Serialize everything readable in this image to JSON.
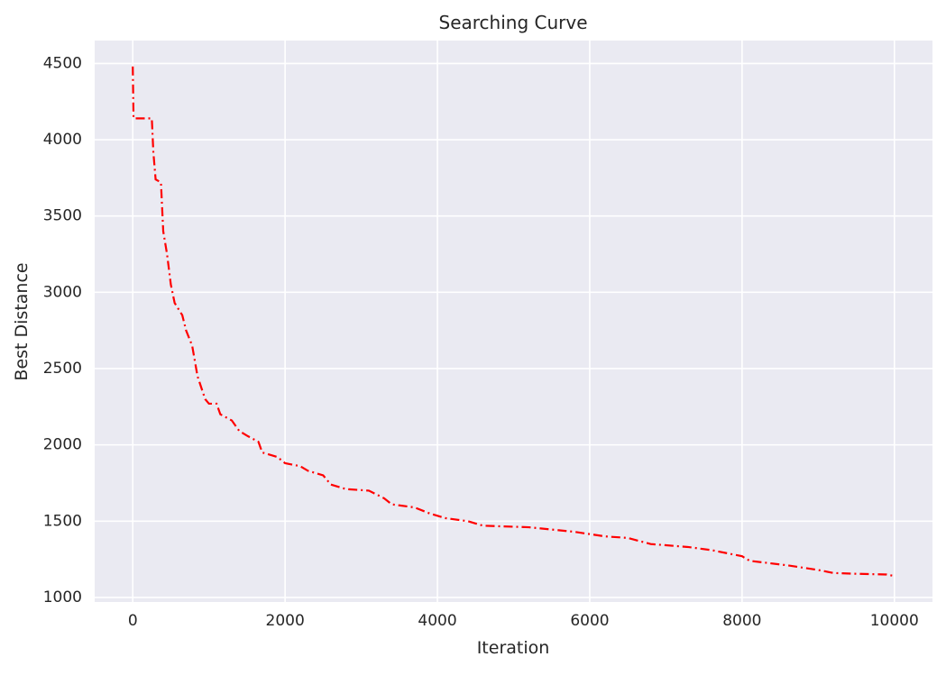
{
  "chart_data": {
    "type": "line",
    "title": "Searching Curve",
    "xlabel": "Iteration",
    "ylabel": "Best Distance",
    "x": [
      0,
      10,
      250,
      270,
      300,
      370,
      400,
      450,
      500,
      550,
      650,
      700,
      780,
      850,
      950,
      1000,
      1100,
      1150,
      1300,
      1400,
      1500,
      1650,
      1700,
      1900,
      2000,
      2200,
      2300,
      2500,
      2600,
      2800,
      3100,
      3300,
      3400,
      3700,
      3900,
      4100,
      4400,
      4600,
      5200,
      5400,
      5800,
      6200,
      6500,
      6800,
      7300,
      7600,
      8000,
      8100,
      8600,
      9000,
      9200,
      9500,
      9900,
      10000
    ],
    "series": [
      {
        "color": "#ff0000",
        "linestyle": "dashdot",
        "values": [
          4480,
          4140,
          4140,
          3920,
          3740,
          3720,
          3400,
          3250,
          3050,
          2930,
          2850,
          2750,
          2650,
          2450,
          2300,
          2270,
          2270,
          2200,
          2160,
          2090,
          2060,
          2020,
          1950,
          1920,
          1880,
          1860,
          1830,
          1800,
          1740,
          1710,
          1700,
          1650,
          1610,
          1590,
          1550,
          1520,
          1500,
          1470,
          1460,
          1450,
          1430,
          1400,
          1390,
          1350,
          1330,
          1310,
          1270,
          1240,
          1210,
          1180,
          1160,
          1155,
          1150,
          1140
        ]
      }
    ],
    "xlim": [
      -500,
      10500
    ],
    "ylim": [
      970,
      4650
    ],
    "xticks": [
      0,
      2000,
      4000,
      6000,
      8000,
      10000
    ],
    "yticks": [
      1000,
      1500,
      2000,
      2500,
      3000,
      3500,
      4000,
      4500
    ],
    "grid": true
  }
}
